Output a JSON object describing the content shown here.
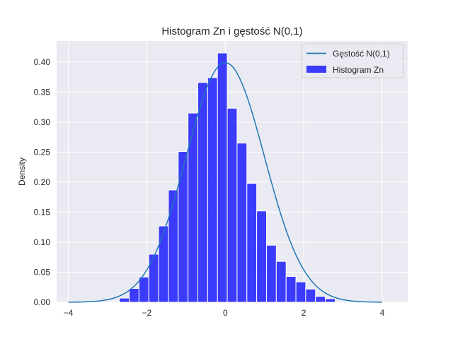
{
  "chart_data": {
    "type": "bar",
    "title": "Histogram Zn i gęstość N(0,1)",
    "xlabel": "",
    "ylabel": "Density",
    "xlim": [
      -4.3,
      4.65
    ],
    "ylim": [
      0,
      0.435
    ],
    "grid": true,
    "legend_position": "top-right",
    "xticks": [
      -4,
      -2,
      0,
      2,
      4
    ],
    "xtick_labels": [
      "−4",
      "−2",
      "0",
      "2",
      "4"
    ],
    "yticks": [
      0.0,
      0.05,
      0.1,
      0.15,
      0.2,
      0.25,
      0.3,
      0.35,
      0.4
    ],
    "ytick_labels": [
      "0.00",
      "0.05",
      "0.10",
      "0.15",
      "0.20",
      "0.25",
      "0.30",
      "0.35",
      "0.40"
    ],
    "histogram": {
      "name": "Histogram Zn",
      "color": "#0000ff",
      "bin_edges": [
        -2.95,
        -2.7,
        -2.45,
        -2.2,
        -1.95,
        -1.7,
        -1.45,
        -1.2,
        -0.95,
        -0.7,
        -0.45,
        -0.2,
        0.05,
        0.3,
        0.55,
        0.8,
        1.05,
        1.3,
        1.55,
        1.8,
        2.05,
        2.3,
        2.55,
        2.8,
        3.05,
        3.3
      ],
      "values": [
        0.001,
        0.007,
        0.023,
        0.042,
        0.08,
        0.127,
        0.187,
        0.251,
        0.315,
        0.366,
        0.374,
        0.415,
        0.323,
        0.265,
        0.198,
        0.152,
        0.095,
        0.068,
        0.043,
        0.034,
        0.022,
        0.01,
        0.006,
        0.0,
        0.0
      ]
    },
    "density": {
      "name": "Gęstość N(0,1)",
      "color": "#1f77b4",
      "x_range": [
        -4,
        4
      ],
      "function": "normal_pdf",
      "mean": 0,
      "std": 1
    }
  }
}
